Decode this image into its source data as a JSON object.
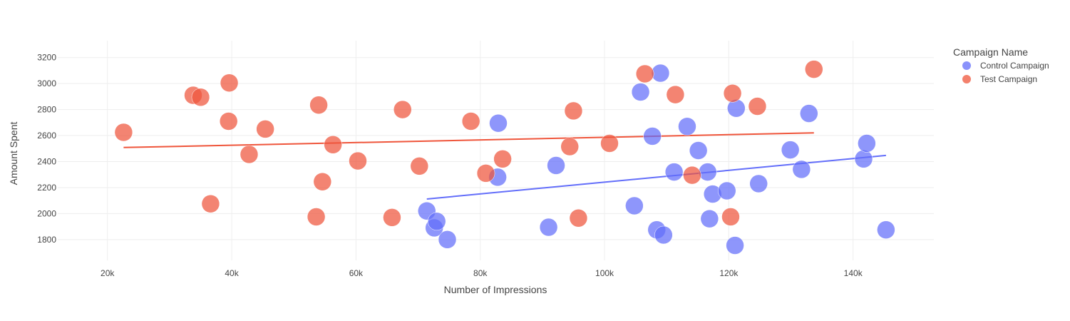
{
  "chart_data": {
    "type": "scatter",
    "xlabel": "Number of Impressions",
    "ylabel": "Amount Spent",
    "xlim": [
      12000,
      153000
    ],
    "ylim": [
      1640,
      3330
    ],
    "x_ticks": [
      20000,
      40000,
      60000,
      80000,
      100000,
      120000,
      140000
    ],
    "x_tick_labels": [
      "20k",
      "40k",
      "60k",
      "80k",
      "100k",
      "120k",
      "140k"
    ],
    "y_ticks": [
      1800,
      2000,
      2200,
      2400,
      2600,
      2800,
      3000,
      3200
    ],
    "y_tick_labels": [
      "1800",
      "2000",
      "2200",
      "2400",
      "2600",
      "2800",
      "3000",
      "3200"
    ],
    "grid": true,
    "legend": {
      "title": "Campaign Name",
      "position": "top-right"
    },
    "series": [
      {
        "name": "Control Campaign",
        "color": "#636efa",
        "points": [
          [
            71400,
            2020
          ],
          [
            72600,
            1890
          ],
          [
            73000,
            1940
          ],
          [
            74700,
            1800
          ],
          [
            82800,
            2280
          ],
          [
            82900,
            2695
          ],
          [
            91000,
            1895
          ],
          [
            92200,
            2370
          ],
          [
            104800,
            2060
          ],
          [
            105800,
            2935
          ],
          [
            107700,
            2595
          ],
          [
            108400,
            1875
          ],
          [
            109000,
            3080
          ],
          [
            109500,
            1835
          ],
          [
            111200,
            2320
          ],
          [
            113300,
            2670
          ],
          [
            115100,
            2485
          ],
          [
            116600,
            2320
          ],
          [
            116900,
            1960
          ],
          [
            117400,
            2150
          ],
          [
            119700,
            2175
          ],
          [
            121000,
            1755
          ],
          [
            121200,
            2810
          ],
          [
            124800,
            2230
          ],
          [
            129900,
            2490
          ],
          [
            131700,
            2340
          ],
          [
            132900,
            2770
          ],
          [
            141700,
            2420
          ],
          [
            142200,
            2540
          ],
          [
            145300,
            1875
          ]
        ],
        "trendline": [
          [
            71400,
            2112
          ],
          [
            145300,
            2447
          ]
        ]
      },
      {
        "name": "Test Campaign",
        "color": "#ef553b",
        "points": [
          [
            22600,
            2625
          ],
          [
            33800,
            2910
          ],
          [
            35000,
            2895
          ],
          [
            36600,
            2075
          ],
          [
            39500,
            2710
          ],
          [
            39600,
            3005
          ],
          [
            42800,
            2455
          ],
          [
            45400,
            2650
          ],
          [
            53600,
            1975
          ],
          [
            54000,
            2835
          ],
          [
            54600,
            2245
          ],
          [
            56300,
            2530
          ],
          [
            60300,
            2405
          ],
          [
            65800,
            1970
          ],
          [
            67500,
            2800
          ],
          [
            70200,
            2365
          ],
          [
            78500,
            2710
          ],
          [
            80900,
            2310
          ],
          [
            83600,
            2420
          ],
          [
            94400,
            2515
          ],
          [
            95000,
            2790
          ],
          [
            95800,
            1965
          ],
          [
            100800,
            2540
          ],
          [
            106500,
            3075
          ],
          [
            111400,
            2915
          ],
          [
            114100,
            2295
          ],
          [
            120300,
            1975
          ],
          [
            120600,
            2925
          ],
          [
            124600,
            2825
          ],
          [
            133700,
            3110
          ]
        ],
        "trendline": [
          [
            22600,
            2508
          ],
          [
            133700,
            2621
          ]
        ]
      }
    ]
  }
}
